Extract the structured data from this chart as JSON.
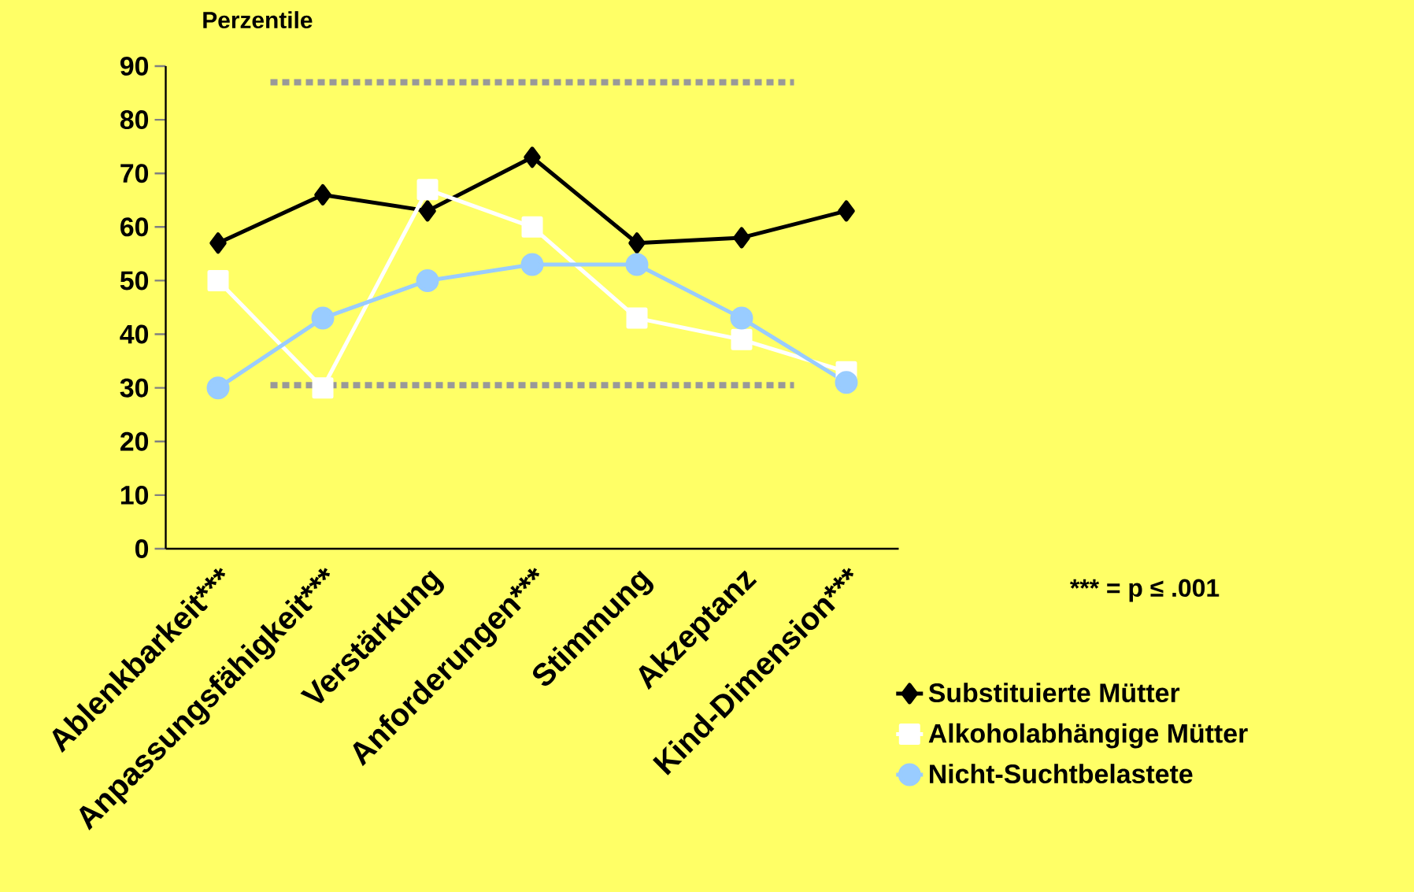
{
  "chart_data": {
    "type": "line",
    "ylabel": "Perzentile",
    "categories": [
      "Ablenkbarkeit***",
      "Anpassungsfähigkeit***",
      "Verstärkung",
      "Anforderungen***",
      "Stimmung",
      "Akzeptanz",
      "Kind-Dimension***"
    ],
    "series": [
      {
        "name": "Substituierte Mütter",
        "color": "#000000",
        "marker": "diamond",
        "values": [
          57,
          66,
          63,
          73,
          57,
          58,
          63
        ]
      },
      {
        "name": "Alkoholabhängige Mütter",
        "color": "#ffffff",
        "marker": "square",
        "values": [
          50,
          30,
          67,
          60,
          43,
          39,
          33
        ]
      },
      {
        "name": "Nicht-Suchtbelastete",
        "color": "#99ccff",
        "marker": "circle",
        "values": [
          30,
          43,
          50,
          53,
          53,
          43,
          31
        ]
      }
    ],
    "ylim": [
      0,
      90
    ],
    "yticks": [
      0,
      10,
      20,
      30,
      40,
      50,
      60,
      70,
      80,
      90
    ],
    "ref_lines": [
      {
        "axis": "y",
        "value": 87,
        "color": "#999999",
        "line_style": "dotted"
      },
      {
        "axis": "y",
        "value": 30.5,
        "color": "#999999",
        "line_style": "dotted"
      }
    ],
    "annotations": [
      "*** = p ≤ .001"
    ],
    "legend": "right",
    "grid": false
  }
}
